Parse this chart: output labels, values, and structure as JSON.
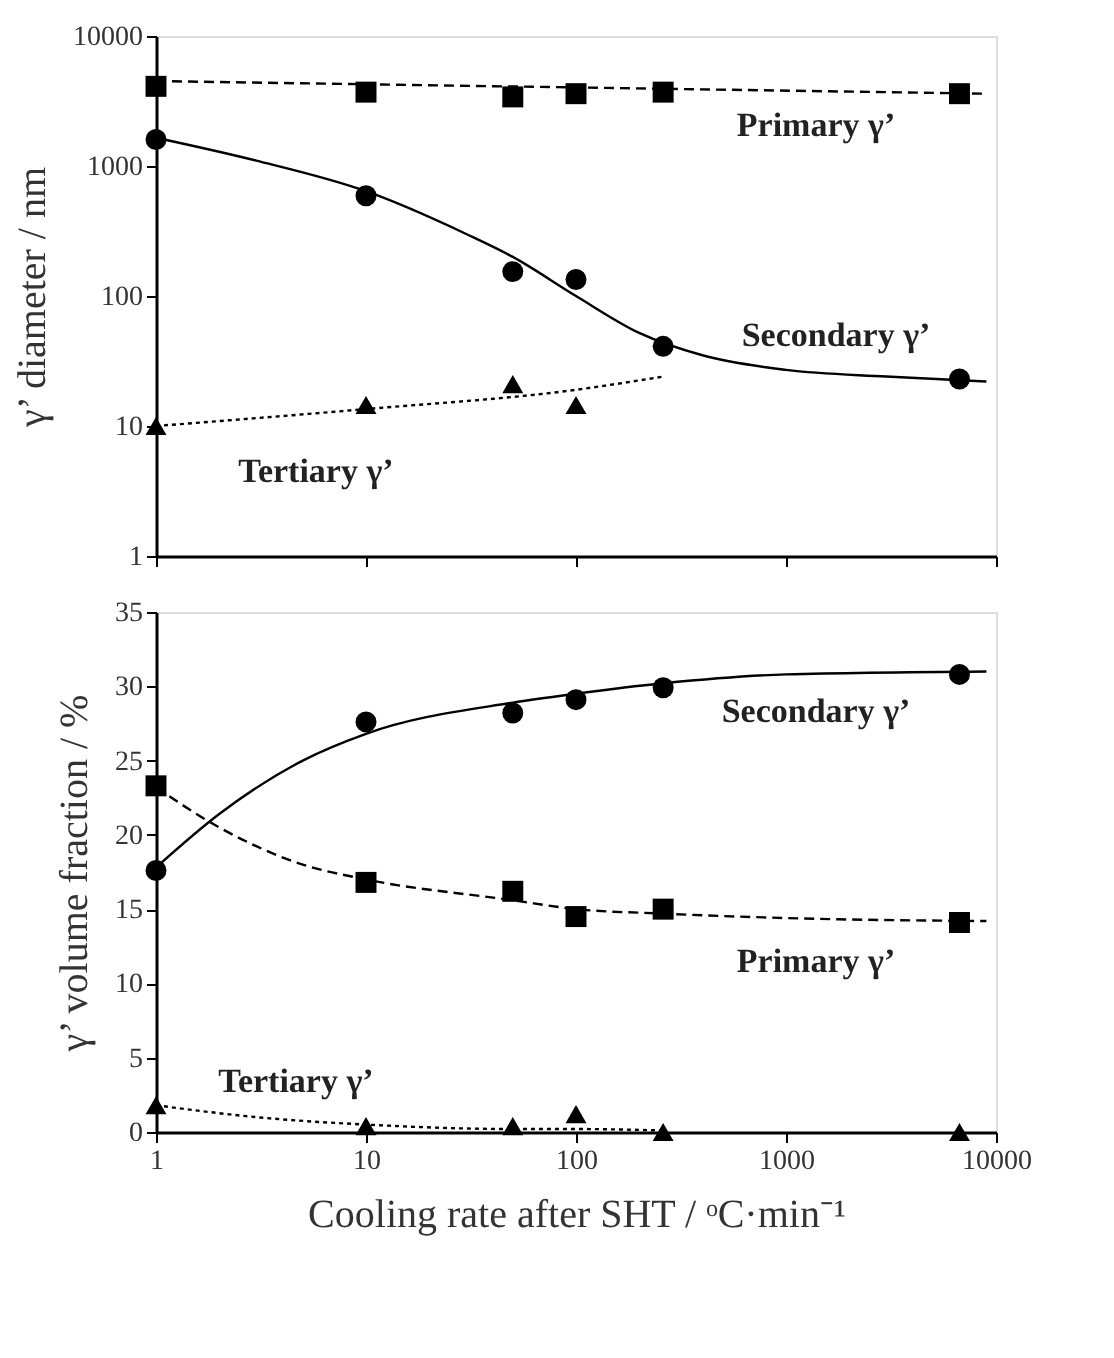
{
  "chart_data": [
    {
      "type": "scatter",
      "ylabel": "γ’ diameter / nm",
      "log": "xy",
      "xlim": [
        1,
        10000
      ],
      "xticks": [
        1,
        10,
        100,
        1000,
        10000
      ],
      "ylim": [
        1,
        10000
      ],
      "yticks": [
        1,
        10,
        100,
        1000,
        10000
      ],
      "tick_labels": "y",
      "grid": false,
      "series": [
        {
          "marker": "square",
          "color": "#000000",
          "x": [
            1,
            10,
            50,
            100,
            260,
            6700
          ],
          "values": [
            4100,
            3700,
            3400,
            3600,
            3700,
            3600
          ]
        },
        {
          "marker": "circle",
          "color": "#000000",
          "x": [
            1,
            10,
            50,
            100,
            260,
            6700
          ],
          "values": [
            1600,
            590,
            154,
            134,
            41,
            23
          ]
        },
        {
          "marker": "triangle",
          "color": "#000000",
          "x": [
            1,
            10,
            50,
            100
          ],
          "values": [
            10,
            14.5,
            21,
            14.5
          ]
        },
        {
          "type": "line",
          "marker": "none",
          "line_style": "dashed",
          "color": "#000000",
          "x": [
            1,
            9000
          ],
          "values": [
            4500,
            3600
          ]
        },
        {
          "type": "line",
          "marker": "none",
          "line_style": "solid",
          "color": "#000000",
          "x": [
            1,
            3,
            10,
            30,
            50,
            100,
            200,
            400,
            1000,
            3000,
            9000
          ],
          "values": [
            1650,
            1100,
            640,
            300,
            200,
            100,
            52,
            35,
            27,
            24,
            22
          ]
        },
        {
          "type": "line",
          "marker": "none",
          "line_style": "dotted",
          "color": "#000000",
          "x": [
            1,
            10,
            100,
            260
          ],
          "values": [
            10,
            13.5,
            19,
            24
          ]
        }
      ],
      "annotations": [
        "Primary γ’",
        "Secondary γ’",
        "Tertiary γ’"
      ]
    },
    {
      "type": "scatter",
      "ylabel": "γ’ volume fraction / %",
      "xlabel": "Cooling rate after SHT / ᵒC·min⁻¹",
      "log": "x",
      "xlim": [
        1,
        10000
      ],
      "xticks": [
        1,
        10,
        100,
        1000,
        10000
      ],
      "ylim": [
        0,
        35
      ],
      "yticks": [
        0,
        5,
        10,
        15,
        20,
        25,
        30,
        35
      ],
      "grid": false,
      "series": [
        {
          "marker": "circle",
          "color": "#000000",
          "x": [
            1,
            10,
            50,
            100,
            260,
            6700
          ],
          "values": [
            17.6,
            27.6,
            28.2,
            29.1,
            29.9,
            30.8
          ]
        },
        {
          "marker": "square",
          "color": "#000000",
          "x": [
            1,
            10,
            50,
            100,
            260,
            6700
          ],
          "values": [
            23.3,
            16.8,
            16.2,
            14.5,
            15.0,
            14.1
          ]
        },
        {
          "marker": "triangle",
          "color": "#000000",
          "x": [
            1,
            10,
            50,
            100,
            260,
            6700
          ],
          "values": [
            1.8,
            0.4,
            0.4,
            1.2,
            0,
            0
          ]
        },
        {
          "type": "line",
          "marker": "none",
          "line_style": "solid",
          "color": "#000000",
          "x": [
            1,
            2,
            5,
            10,
            50,
            100,
            260,
            1000,
            9000
          ],
          "values": [
            17.8,
            21.4,
            25.0,
            26.8,
            28.9,
            29.5,
            30.2,
            30.8,
            31.0
          ]
        },
        {
          "type": "line",
          "marker": "none",
          "line_style": "dashed",
          "color": "#000000",
          "x": [
            1,
            2,
            5,
            10,
            50,
            100,
            260,
            1000,
            9000
          ],
          "values": [
            23.2,
            20.5,
            18.0,
            17.0,
            15.6,
            15.0,
            14.7,
            14.4,
            14.2
          ]
        },
        {
          "type": "line",
          "marker": "none",
          "line_style": "dotted",
          "color": "#000000",
          "x": [
            1,
            3,
            10,
            50,
            100,
            260
          ],
          "values": [
            1.8,
            1.0,
            0.5,
            0.2,
            0.2,
            0.1
          ]
        }
      ],
      "annotations": [
        "Secondary γ’",
        "Primary γ’",
        "Tertiary γ’"
      ]
    }
  ]
}
